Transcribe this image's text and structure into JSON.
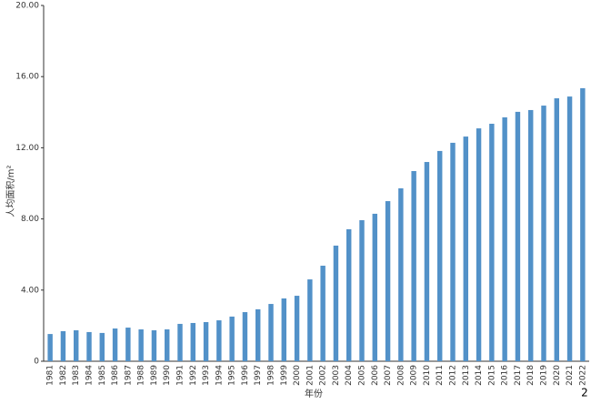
{
  "chart_data": {
    "type": "bar",
    "y_label": "人均面积/m²",
    "x_label": "年份",
    "annotation": "2",
    "categories": [
      "1981",
      "1982",
      "1983",
      "1984",
      "1985",
      "1986",
      "1987",
      "1988",
      "1989",
      "1990",
      "1991",
      "1992",
      "1993",
      "1994",
      "1995",
      "1996",
      "1997",
      "1998",
      "1999",
      "2000",
      "2001",
      "2002",
      "2003",
      "2004",
      "2005",
      "2006",
      "2007",
      "2008",
      "2009",
      "2010",
      "2011",
      "2012",
      "2013",
      "2014",
      "2015",
      "2016",
      "2017",
      "2018",
      "2019",
      "2020",
      "2021",
      "2022"
    ],
    "values": [
      1.53,
      1.69,
      1.74,
      1.64,
      1.59,
      1.84,
      1.89,
      1.79,
      1.74,
      1.79,
      2.1,
      2.15,
      2.2,
      2.3,
      2.51,
      2.76,
      2.92,
      3.22,
      3.53,
      3.68,
      4.6,
      5.37,
      6.5,
      7.42,
      7.93,
      8.29,
      9.0,
      9.72,
      10.69,
      11.2,
      11.82,
      12.28,
      12.63,
      13.09,
      13.35,
      13.71,
      14.02,
      14.12,
      14.37,
      14.78,
      14.88,
      15.35
    ],
    "color": "#5291c8",
    "ylim": [
      0,
      20
    ],
    "yticks": [
      0,
      {
        "value": 4,
        "label": "4.00"
      },
      {
        "value": 8,
        "label": "8.00"
      },
      {
        "value": 12,
        "label": "12.00"
      },
      {
        "value": 16,
        "label": "16.00"
      },
      {
        "value": 20,
        "label": "20.00"
      }
    ],
    "grid": false
  }
}
